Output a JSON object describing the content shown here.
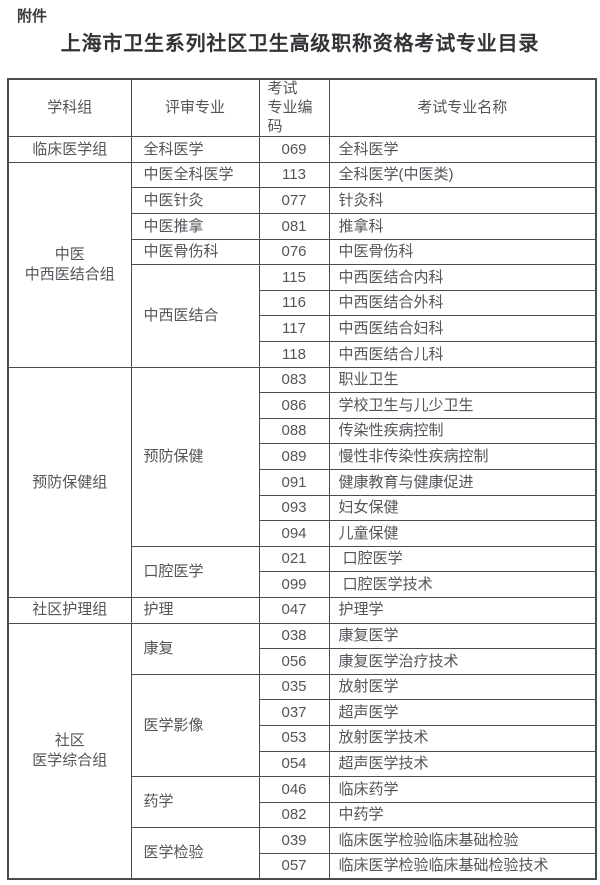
{
  "page": {
    "attachment_label": "附件",
    "title": "上海市卫生系列社区卫生高级职称资格考试专业目录"
  },
  "table": {
    "headers": {
      "group": "学科组",
      "major": "评审专业",
      "code": "考试\n专业编\n码",
      "name": "考试专业名称"
    },
    "groups": [
      {
        "group": "临床医学组",
        "majors": [
          {
            "major": "全科医学",
            "entries": [
              {
                "code": "069",
                "name": "全科医学"
              }
            ]
          }
        ]
      },
      {
        "group": "中医\n中西医结合组",
        "majors": [
          {
            "major": "中医全科医学",
            "entries": [
              {
                "code": "113",
                "name": "全科医学(中医类)"
              }
            ]
          },
          {
            "major": "中医针灸",
            "entries": [
              {
                "code": "077",
                "name": "针灸科"
              }
            ]
          },
          {
            "major": "中医推拿",
            "entries": [
              {
                "code": "081",
                "name": "推拿科"
              }
            ]
          },
          {
            "major": "中医骨伤科",
            "entries": [
              {
                "code": "076",
                "name": "中医骨伤科"
              }
            ]
          },
          {
            "major": "中西医结合",
            "entries": [
              {
                "code": "115",
                "name": "中西医结合内科"
              },
              {
                "code": "116",
                "name": "中西医结合外科"
              },
              {
                "code": "117",
                "name": "中西医结合妇科"
              },
              {
                "code": "118",
                "name": "中西医结合儿科"
              }
            ]
          }
        ]
      },
      {
        "group": "预防保健组",
        "majors": [
          {
            "major": "预防保健",
            "entries": [
              {
                "code": "083",
                "name": "职业卫生"
              },
              {
                "code": "086",
                "name": "学校卫生与儿少卫生"
              },
              {
                "code": "088",
                "name": "传染性疾病控制"
              },
              {
                "code": "089",
                "name": "慢性非传染性疾病控制"
              },
              {
                "code": "091",
                "name": "健康教育与健康促进"
              },
              {
                "code": "093",
                "name": "妇女保健"
              },
              {
                "code": "094",
                "name": "儿童保健"
              }
            ]
          },
          {
            "major": "口腔医学",
            "entries": [
              {
                "code": "021",
                "name": " 口腔医学"
              },
              {
                "code": "099",
                "name": " 口腔医学技术"
              }
            ]
          }
        ]
      },
      {
        "group": "社区护理组",
        "majors": [
          {
            "major": "护理",
            "entries": [
              {
                "code": "047",
                "name": "护理学"
              }
            ]
          }
        ]
      },
      {
        "group": "社区\n医学综合组",
        "majors": [
          {
            "major": "康复",
            "entries": [
              {
                "code": "038",
                "name": "康复医学"
              },
              {
                "code": "056",
                "name": "康复医学治疗技术"
              }
            ]
          },
          {
            "major": "医学影像",
            "entries": [
              {
                "code": "035",
                "name": "放射医学"
              },
              {
                "code": "037",
                "name": "超声医学"
              },
              {
                "code": "053",
                "name": "放射医学技术"
              },
              {
                "code": "054",
                "name": "超声医学技术"
              }
            ]
          },
          {
            "major": "药学",
            "entries": [
              {
                "code": "046",
                "name": "临床药学"
              },
              {
                "code": "082",
                "name": "中药学"
              }
            ]
          },
          {
            "major": "医学检验",
            "entries": [
              {
                "code": "039",
                "name": "临床医学检验临床基础检验"
              },
              {
                "code": "057",
                "name": "临床医学检验临床基础检验技术"
              }
            ]
          }
        ]
      }
    ]
  },
  "colors": {
    "page_background": "#ffffff",
    "table_border": "#4c4d51",
    "table_text": "#54555a",
    "title_text": "#323337"
  }
}
